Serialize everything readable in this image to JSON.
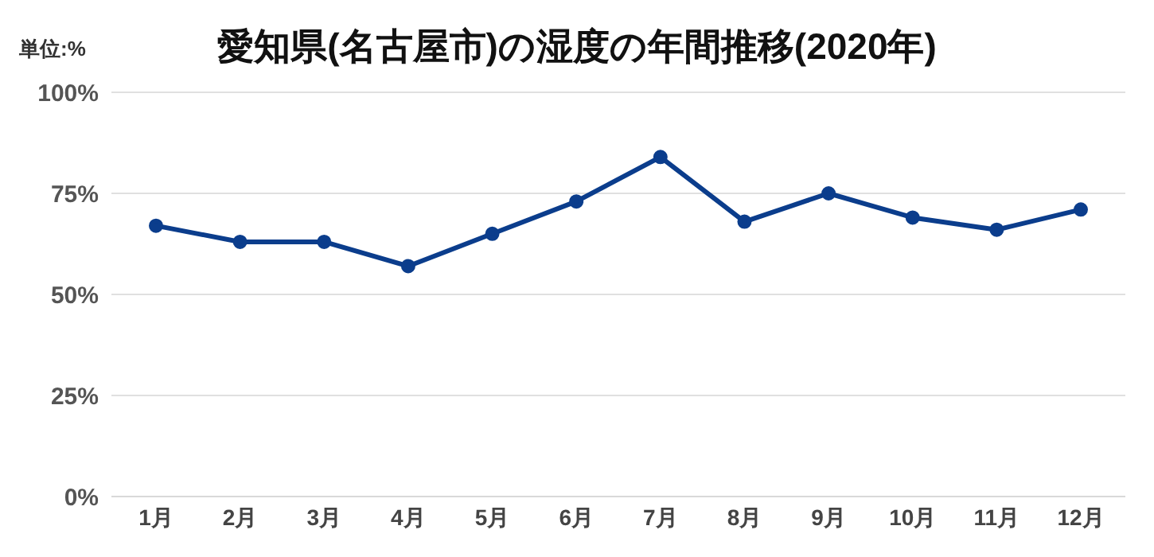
{
  "chart_data": {
    "type": "line",
    "title": "愛知県(名古屋市)の湿度の年間推移(2020年)",
    "ylabel": "単位:%",
    "categories": [
      "1月",
      "2月",
      "3月",
      "4月",
      "5月",
      "6月",
      "7月",
      "8月",
      "9月",
      "10月",
      "11月",
      "12月"
    ],
    "series": [
      {
        "color": "#0b3d8c",
        "values": [
          67,
          63,
          63,
          57,
          65,
          73,
          84,
          68,
          75,
          69,
          66,
          71
        ]
      }
    ],
    "ylim": [
      0,
      100
    ],
    "yticks": [
      {
        "value": 0,
        "label": "0%"
      },
      {
        "value": 25,
        "label": "25%"
      },
      {
        "value": 50,
        "label": "50%"
      },
      {
        "value": 75,
        "label": "75%"
      },
      {
        "value": 100,
        "label": "100%"
      }
    ],
    "grid": "y",
    "marker": "circle",
    "line_style": "solid"
  }
}
